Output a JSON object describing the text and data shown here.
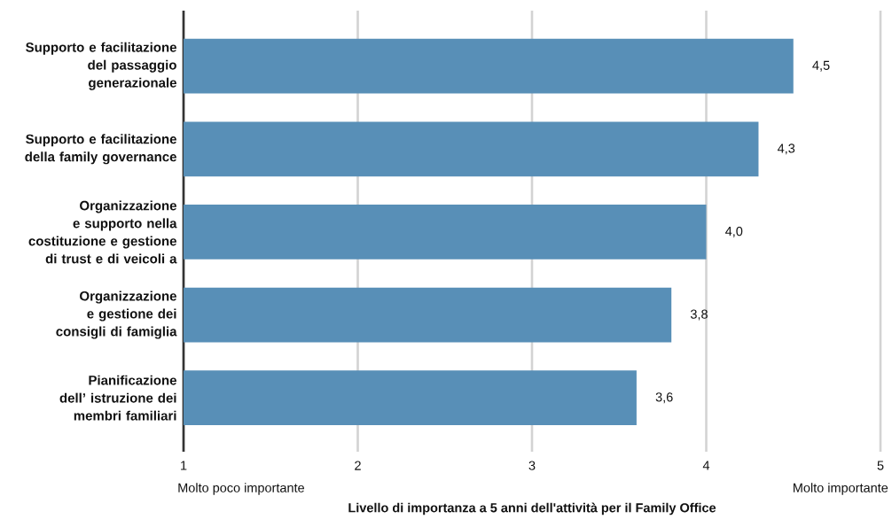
{
  "chart_data": {
    "type": "bar",
    "orientation": "horizontal",
    "categories": [
      "Supporto e facilitazione del passaggio generazionale",
      "Supporto e facilitazione della family governance",
      "Organizzazione e supporto nella costituzione e gestione di trust e di veicoli a",
      "Organizzazione e gestione dei consigli di famiglia",
      "Pianificazione dell’ istruzione dei membri familiari"
    ],
    "values": [
      4.5,
      4.3,
      4.0,
      3.8,
      3.6
    ],
    "value_labels": [
      "4,5",
      "4,3",
      "4,0",
      "3,8",
      "3,6"
    ],
    "color": "#588fb7",
    "xlim": [
      1,
      5
    ],
    "xticks": [
      1,
      2,
      3,
      4,
      5
    ],
    "grid": "x",
    "xlabel": "Livello di importanza a 5 anni dell'attività per il Family Office",
    "annotations": [
      "Molto poco importante",
      "Molto importante"
    ]
  }
}
